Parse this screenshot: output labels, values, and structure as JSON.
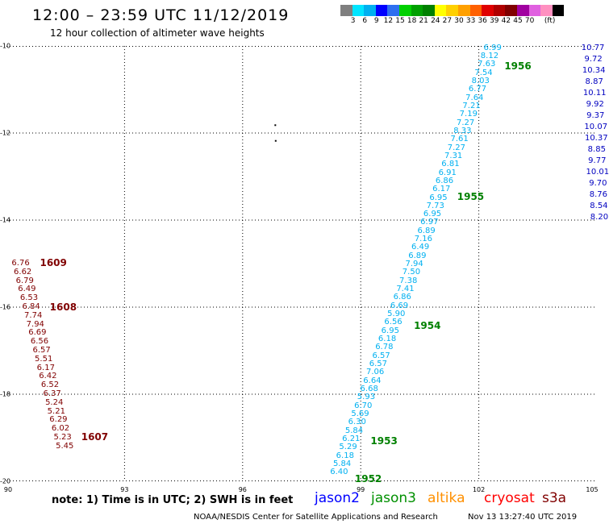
{
  "header": {
    "title": "12:00 – 23:59 UTC 11/12/2019",
    "subtitle": "12 hour collection of altimeter wave heights"
  },
  "scale": {
    "unit": "(ft)",
    "colors": [
      "#7f7f7f",
      "#00e5ff",
      "#00b0f0",
      "#0000ff",
      "#2e6ff0",
      "#00d000",
      "#00a000",
      "#008000",
      "#ffff00",
      "#ffd000",
      "#ffa000",
      "#ff6000",
      "#e00000",
      "#b00000",
      "#800000",
      "#a000a0",
      "#e060e0",
      "#ff90c0",
      "#000000"
    ],
    "labels": [
      "3",
      "6",
      "9",
      "12",
      "15",
      "18",
      "21",
      "24",
      "27",
      "30",
      "33",
      "36",
      "39",
      "42",
      "45",
      "70"
    ]
  },
  "axes": {
    "lon_labels": [
      "90",
      "93",
      "96",
      "99",
      "102",
      "105"
    ],
    "lat_labels": [
      "-10",
      "-12",
      "-14",
      "-16",
      "-18",
      "-20"
    ]
  },
  "map_data": {
    "lon_range": [
      90,
      105
    ],
    "lat_range": [
      -20,
      -10
    ],
    "colors": {
      "jason3": "#00b0f0",
      "cryosat": "#800000",
      "jason2": "#0000c0",
      "time": "#008000"
    },
    "tracks": [
      {
        "satellite": "cryosat",
        "values": [
          "6.76",
          "6.62",
          "6.79",
          "6.49",
          "6.53",
          "6.84",
          "7.74",
          "7.94",
          "6.69",
          "6.56",
          "6.57",
          "5.51",
          "6.17",
          "6.42",
          "6.52",
          "6.37",
          "5.24",
          "5.21",
          "6.29",
          "6.02",
          "5.23",
          "5.45"
        ],
        "start": [
          90.36,
          -15.0
        ],
        "end": [
          91.48,
          -19.2
        ],
        "times": [
          {
            "label": "1609",
            "lon": 90.85,
            "lat": -14.98
          },
          {
            "label": "1608",
            "lon": 91.1,
            "lat": -16.0
          },
          {
            "label": "1607",
            "lon": 91.9,
            "lat": -18.98
          }
        ]
      },
      {
        "satellite": "jason3",
        "values": [
          "6.99",
          "8.12",
          "7.63",
          "7.54",
          "8.03",
          "6.77",
          "7.64",
          "7.21",
          "7.19",
          "7.27",
          "8.33",
          "7.61",
          "7.27",
          "7.31",
          "6.81",
          "6.91",
          "6.86",
          "6.17",
          "6.95",
          "7.73",
          "6.95",
          "6.97",
          "6.89",
          "7.16",
          "6.49",
          "6.89",
          "7.94",
          "7.50",
          "7.38",
          "7.41",
          "6.86",
          "6.69",
          "5.90",
          "6.56",
          "6.95",
          "6.18",
          "6.78",
          "6.57",
          "6.57",
          "7.06",
          "6.64",
          "6.68",
          "5.93",
          "6.70",
          "5.69",
          "6.30",
          "5.84",
          "6.21",
          "5.29",
          "6.18",
          "5.84",
          "6.40"
        ],
        "start": [
          102.35,
          -10.05
        ],
        "end": [
          98.45,
          -19.8
        ],
        "times": [
          {
            "label": "1956",
            "lon": 102.65,
            "lat": -10.46
          },
          {
            "label": "1955",
            "lon": 101.45,
            "lat": -13.46
          },
          {
            "label": "1954",
            "lon": 100.35,
            "lat": -16.42
          },
          {
            "label": "1953",
            "lon": 99.25,
            "lat": -19.08
          },
          {
            "label": "1952",
            "lon": 98.85,
            "lat": -19.95
          }
        ]
      },
      {
        "satellite": "jason2",
        "values": [
          "10.77",
          "9.72",
          "10.34",
          "8.87",
          "10.11",
          "9.92",
          "9.37",
          "10.07",
          "10.37",
          "8.85",
          "9.77",
          "10.01",
          "9.70",
          "8.76",
          "8.54",
          "8.20"
        ],
        "start": [
          104.9,
          -10.05
        ],
        "end": [
          105.06,
          -13.95
        ],
        "times": []
      }
    ],
    "island_marks": [
      {
        "lon": 96.83,
        "lat": -11.82
      },
      {
        "lon": 96.84,
        "lat": -12.18
      }
    ]
  },
  "note": "note:  1) Time is in UTC;  2) SWH is in feet",
  "satellites": [
    {
      "name": "jason2",
      "color": "#0000ff"
    },
    {
      "name": "jason3",
      "color": "#009000"
    },
    {
      "name": "altika",
      "color": "#ff9000"
    },
    {
      "name": "cryosat",
      "color": "#ff0000"
    },
    {
      "name": "s3a",
      "color": "#800000"
    }
  ],
  "footer": {
    "credit": "NOAA/NESDIS Center for Satellite Applications and Research",
    "timestamp": "Nov 13 13:27:40 UTC 2019"
  }
}
